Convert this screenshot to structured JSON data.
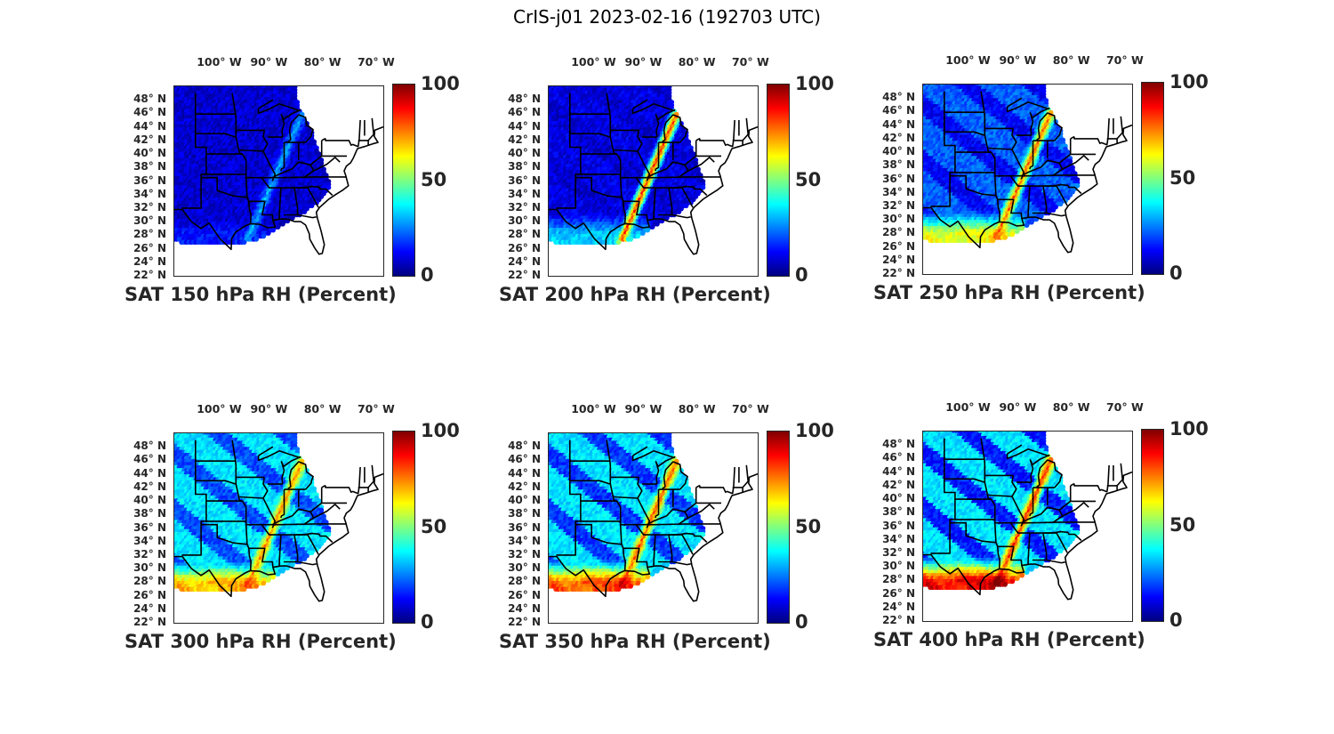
{
  "figure_title": "CrIS-j01 2023-02-16 (192703 UTC)",
  "colorbar": {
    "min_label": "0",
    "mid_label": "50",
    "max_label": "100",
    "colormap": [
      "#00007f",
      "#0000ff",
      "#007fff",
      "#00ffff",
      "#7fff7f",
      "#ffff00",
      "#ff7f00",
      "#ff0000",
      "#7f0000"
    ]
  },
  "lon_labels": [
    "100° W",
    "90° W",
    "80° W",
    "70° W"
  ],
  "lat_labels": [
    "48° N",
    "46° N",
    "44° N",
    "42° N",
    "40° N",
    "38° N",
    "36° N",
    "34° N",
    "32° N",
    "30° N",
    "28° N",
    "26° N",
    "24° N",
    "22° N"
  ],
  "map_extent": {
    "lon": [
      -108,
      -69
    ],
    "lat": [
      22,
      50
    ]
  },
  "panels": [
    {
      "id": "p150",
      "title": "SAT 150 hPa RH (Percent)",
      "level_hpa": 150,
      "base_rh": 8,
      "dry_band_rh": 8,
      "moist_band_rh": 30,
      "southwest_rh": 12
    },
    {
      "id": "p200",
      "title": "SAT 200 hPa RH (Percent)",
      "level_hpa": 200,
      "base_rh": 10,
      "dry_band_rh": 8,
      "moist_band_rh": 85,
      "southwest_rh": 30
    },
    {
      "id": "p250",
      "title": "SAT 250 hPa RH (Percent)",
      "level_hpa": 250,
      "base_rh": 22,
      "dry_band_rh": 12,
      "moist_band_rh": 80,
      "southwest_rh": 55
    },
    {
      "id": "p300",
      "title": "SAT 300 hPa RH (Percent)",
      "level_hpa": 300,
      "base_rh": 35,
      "dry_band_rh": 20,
      "moist_band_rh": 75,
      "southwest_rh": 60
    },
    {
      "id": "p350",
      "title": "SAT 350 hPa RH (Percent)",
      "level_hpa": 350,
      "base_rh": 35,
      "dry_band_rh": 18,
      "moist_band_rh": 80,
      "southwest_rh": 70
    },
    {
      "id": "p400",
      "title": "SAT 400 hPa RH (Percent)",
      "level_hpa": 400,
      "base_rh": 35,
      "dry_band_rh": 15,
      "moist_band_rh": 85,
      "southwest_rh": 80
    }
  ]
}
